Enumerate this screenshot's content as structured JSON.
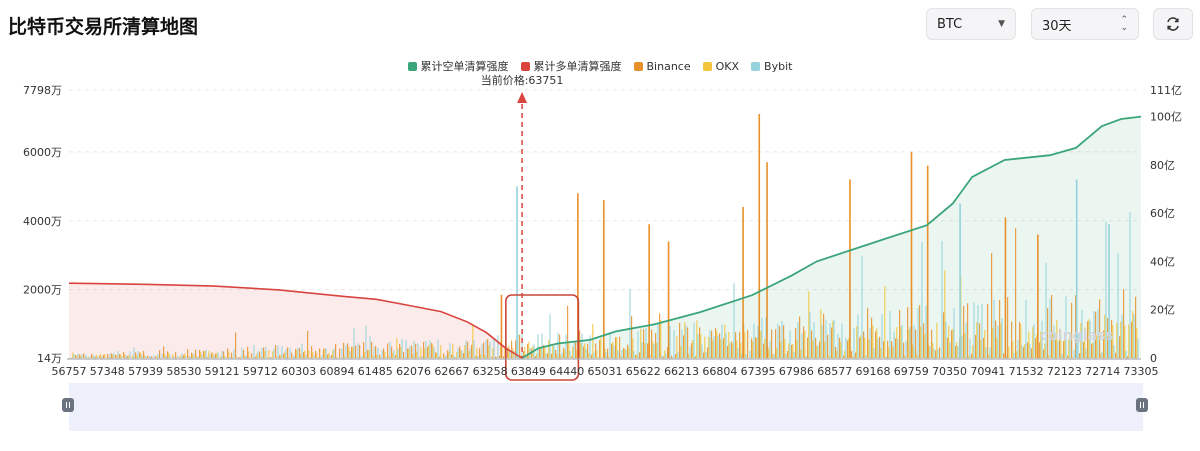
{
  "header": {
    "title": "比特币交易所清算地图",
    "symbol_select": {
      "value": "BTC",
      "icon": "chevron-down-icon"
    },
    "period_select": {
      "value": "30天",
      "icon": "up-down-chevron-icon"
    },
    "refresh_button": {
      "icon": "refresh-icon"
    }
  },
  "watermark": "coinglass",
  "colors": {
    "short_cumulative": "#3aa57a",
    "long_cumulative": "#d9443f",
    "binance": "#e8912a",
    "okx": "#f2c53d",
    "bybit": "#94d3dc",
    "current_price_marker": "#d9443f",
    "highlight_box": "#c9473a",
    "zoom_bar": "#eef0fb"
  },
  "chart_data": {
    "type": "bar",
    "legend": [
      {
        "name": "累计空单清算强度",
        "color": "#3aa57a"
      },
      {
        "name": "累计多单清算强度",
        "color": "#d9443f"
      },
      {
        "name": "Binance",
        "color": "#e8912a"
      },
      {
        "name": "OKX",
        "color": "#f2c53d"
      },
      {
        "name": "Bybit",
        "color": "#94d3dc"
      }
    ],
    "current_price_label": "当前价格:63751",
    "current_price": 63751,
    "x_ticks": [
      "56757",
      "57348",
      "57939",
      "58530",
      "59121",
      "59712",
      "60303",
      "60894",
      "61485",
      "62076",
      "62667",
      "63258",
      "63849",
      "64440",
      "65031",
      "65622",
      "66213",
      "66804",
      "67395",
      "67986",
      "68577",
      "69168",
      "69759",
      "70350",
      "70941",
      "71532",
      "72123",
      "72714",
      "73305"
    ],
    "x_range": [
      56757,
      73305
    ],
    "y_left": {
      "ticks": [
        "14万",
        "2000万",
        "4000万",
        "6000万",
        "7798万"
      ],
      "range": [
        14,
        7798
      ],
      "unit": "万"
    },
    "y_right": {
      "ticks": [
        "0",
        "20亿",
        "40亿",
        "60亿",
        "80亿",
        "100亿",
        "111亿"
      ],
      "range": [
        0,
        111
      ],
      "unit": "亿"
    },
    "highlight_range": [
      63500,
      64620
    ],
    "cumulative_long": {
      "name": "累计多单清算强度",
      "x": [
        56757,
        58000,
        59000,
        60000,
        61000,
        61500,
        62000,
        62500,
        62900,
        63200,
        63500,
        63751
      ],
      "y": [
        31,
        30.5,
        29.8,
        28.2,
        25.5,
        24.3,
        21.8,
        19.2,
        15,
        10.5,
        4,
        0
      ]
    },
    "cumulative_short": {
      "name": "累计空单清算强度",
      "x": [
        63751,
        64000,
        64300,
        64800,
        65200,
        65800,
        66500,
        67300,
        67900,
        68300,
        69200,
        70000,
        70400,
        70700,
        71200,
        71900,
        72300,
        72700,
        73000,
        73305
      ],
      "y": [
        0,
        4,
        6,
        7.5,
        11,
        14,
        19,
        26,
        34,
        40,
        48,
        55,
        64,
        75,
        82,
        84,
        87,
        96,
        99,
        100
      ]
    },
    "exchange_bars": {
      "description_units": "万",
      "peaks": [
        {
          "x": 63420,
          "y": 1850,
          "exchange": "Binance"
        },
        {
          "x": 63660,
          "y": 5000,
          "exchange": "Bybit"
        },
        {
          "x": 64600,
          "y": 4800,
          "exchange": "Binance"
        },
        {
          "x": 65000,
          "y": 4600,
          "exchange": "Binance"
        },
        {
          "x": 65700,
          "y": 3900,
          "exchange": "Binance"
        },
        {
          "x": 66000,
          "y": 3400,
          "exchange": "Binance"
        },
        {
          "x": 67150,
          "y": 4400,
          "exchange": "Binance"
        },
        {
          "x": 67400,
          "y": 7100,
          "exchange": "Binance"
        },
        {
          "x": 67520,
          "y": 5700,
          "exchange": "Binance"
        },
        {
          "x": 68800,
          "y": 5200,
          "exchange": "Binance"
        },
        {
          "x": 69750,
          "y": 6000,
          "exchange": "Binance"
        },
        {
          "x": 70000,
          "y": 5600,
          "exchange": "Binance"
        },
        {
          "x": 70500,
          "y": 4500,
          "exchange": "Bybit"
        },
        {
          "x": 71200,
          "y": 4100,
          "exchange": "Binance"
        },
        {
          "x": 71700,
          "y": 3600,
          "exchange": "Binance"
        },
        {
          "x": 72300,
          "y": 5200,
          "exchange": "Bybit"
        },
        {
          "x": 72800,
          "y": 3900,
          "exchange": "Bybit"
        }
      ]
    }
  }
}
